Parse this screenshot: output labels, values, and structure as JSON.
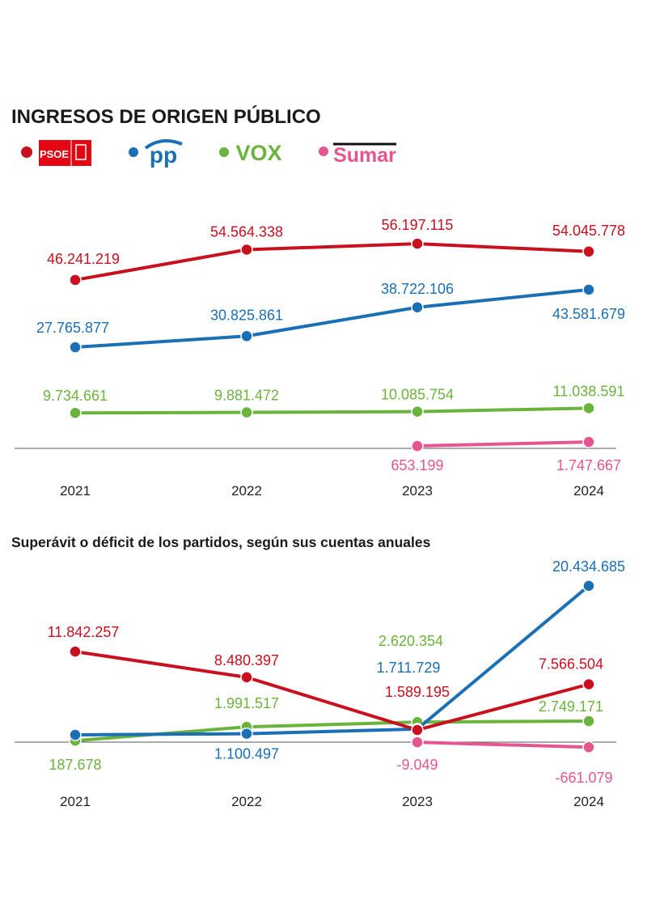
{
  "colors": {
    "PSOE": "#c8101e",
    "PP": "#1a6fb5",
    "VOX": "#6ab43e",
    "Sumar": "#e6558f"
  },
  "legend": [
    {
      "party": "PSOE",
      "logo_text": "PSOE",
      "color": "#c8101e"
    },
    {
      "party": "PP",
      "logo_text": "pp",
      "color": "#1a6fb5"
    },
    {
      "party": "VOX",
      "logo_text": "VOX",
      "color": "#6ab43e"
    },
    {
      "party": "Sumar",
      "logo_text": "Sumar",
      "color": "#e6558f"
    }
  ],
  "chart_data": [
    {
      "type": "line",
      "title": "INGRESOS DE ORIGEN PÚBLICO",
      "categories": [
        "2021",
        "2022",
        "2023",
        "2024"
      ],
      "ylim": [
        0,
        60000000
      ],
      "grid": false,
      "legend_position": "top-left",
      "series": [
        {
          "name": "PSOE",
          "color": "#c8101e",
          "values": [
            46241219,
            54564338,
            56197115,
            54045778
          ],
          "labels": [
            "46.241.219",
            "54.564.338",
            "56.197.115",
            "54.045.778"
          ]
        },
        {
          "name": "PP",
          "color": "#1a6fb5",
          "values": [
            27765877,
            30825861,
            38722106,
            43581679
          ],
          "labels": [
            "27.765.877",
            "30.825.861",
            "38.722.106",
            "43.581.679"
          ]
        },
        {
          "name": "VOX",
          "color": "#6ab43e",
          "values": [
            9734661,
            9881472,
            10085754,
            11038591
          ],
          "labels": [
            "9.734.661",
            "9.881.472",
            "10.085.754",
            "11.038.591"
          ]
        },
        {
          "name": "Sumar",
          "color": "#e6558f",
          "values": [
            null,
            null,
            653199,
            1747667
          ],
          "labels": [
            null,
            null,
            "653.199",
            "1.747.667"
          ]
        }
      ]
    },
    {
      "type": "line",
      "title": "Superávit o déficit de los partidos, según sus cuentas anuales",
      "categories": [
        "2021",
        "2022",
        "2023",
        "2024"
      ],
      "ylim": [
        -2000000,
        22000000
      ],
      "grid": false,
      "series": [
        {
          "name": "PSOE",
          "color": "#c8101e",
          "values": [
            11842257,
            8480397,
            1589195,
            7566504
          ],
          "labels": [
            "11.842.257",
            "8.480.397",
            "1.589.195",
            "7.566.504"
          ]
        },
        {
          "name": "PP",
          "color": "#1a6fb5",
          "values": [
            950000,
            1100497,
            1711729,
            20434685
          ],
          "labels": [
            null,
            "1.100.497",
            "1.711.729",
            "20.434.685"
          ]
        },
        {
          "name": "VOX",
          "color": "#6ab43e",
          "values": [
            187678,
            1991517,
            2620354,
            2749171
          ],
          "labels": [
            "187.678",
            "1.991.517",
            "2.620.354",
            "2.749.171"
          ]
        },
        {
          "name": "Sumar",
          "color": "#e6558f",
          "values": [
            null,
            null,
            -9049,
            -661079
          ],
          "labels": [
            null,
            null,
            "-9.049",
            "-661.079"
          ]
        }
      ]
    }
  ]
}
